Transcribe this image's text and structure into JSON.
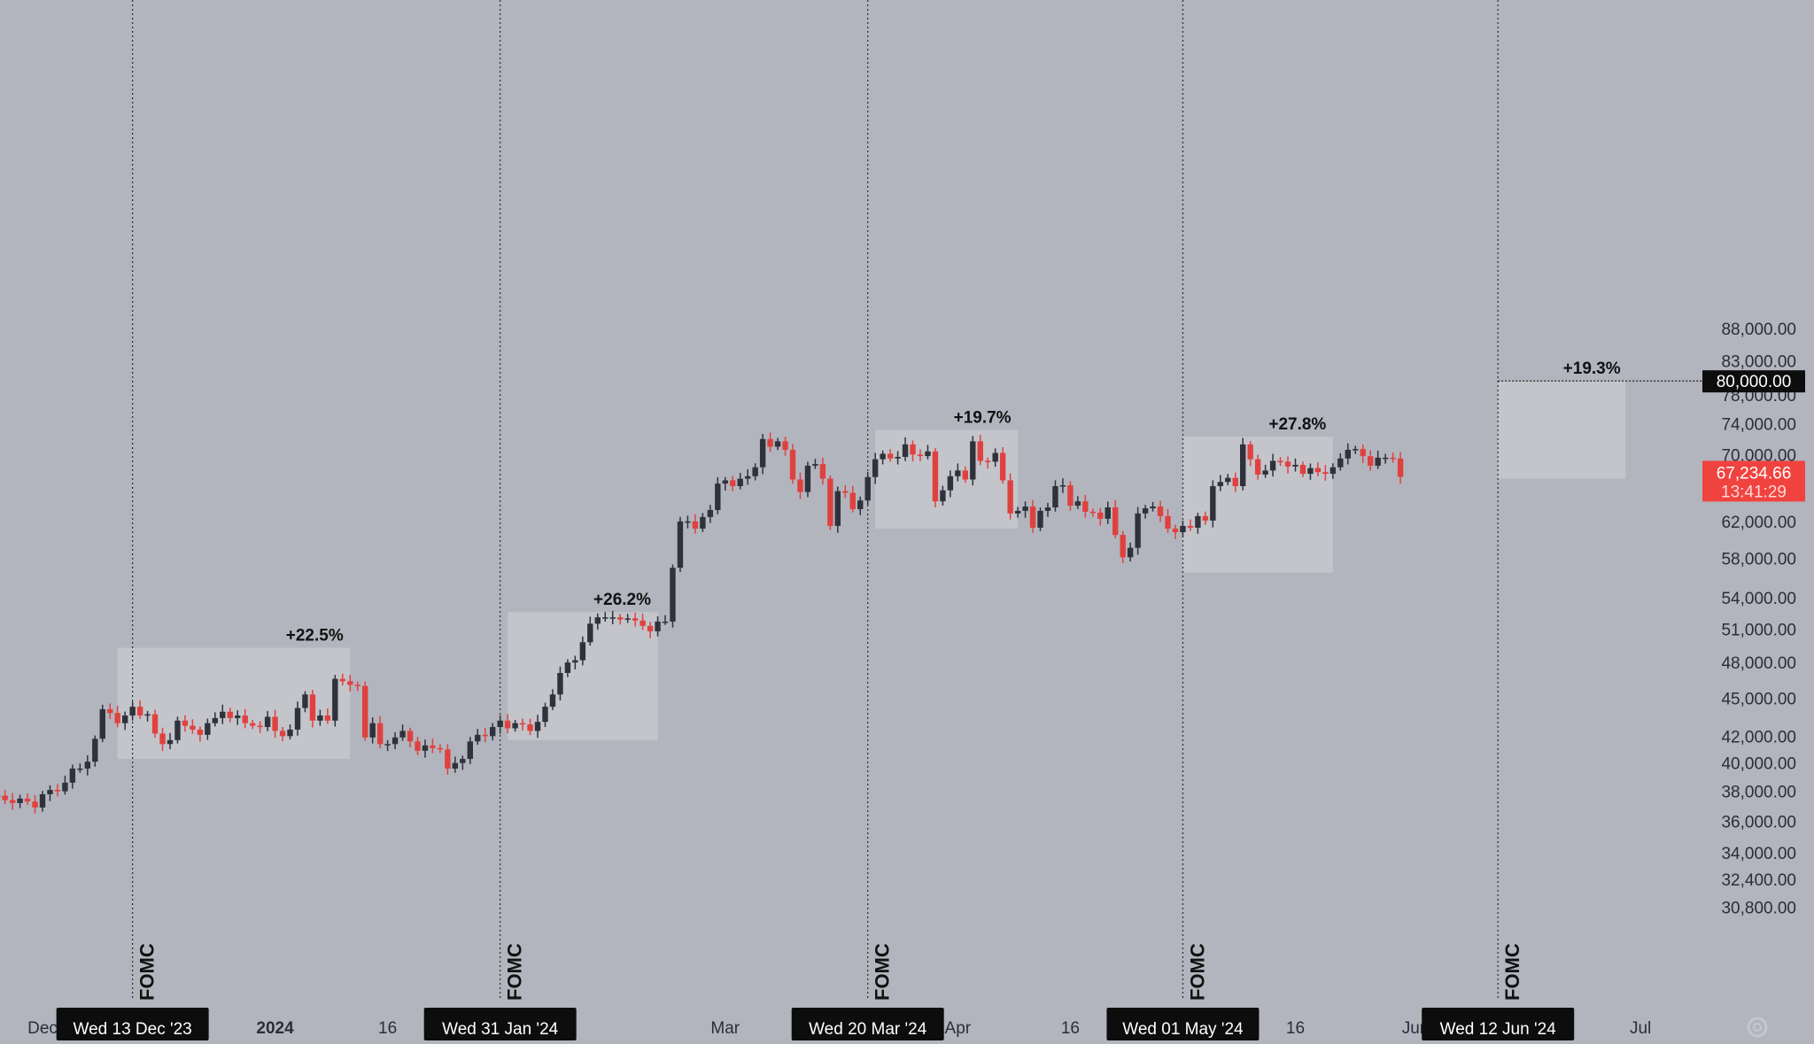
{
  "colors": {
    "background": "#b2b5be",
    "up_candle": "#2f323b",
    "down_candle": "#e0413f",
    "box_fill": "#c6c8ce",
    "vline": "#2a2a2a",
    "label_bg": "#0d0d0d",
    "price_tag": "#f0433f"
  },
  "price_axis": {
    "scale": "log",
    "ylim": [
      29000,
      90000
    ],
    "ticks": [
      "88,000.00",
      "83,000.00",
      "78,000.00",
      "74,000.00",
      "70,000.00",
      "62,000.00",
      "58,000.00",
      "54,000.00",
      "51,000.00",
      "48,000.00",
      "45,000.00",
      "42,000.00",
      "40,000.00",
      "38,000.00",
      "36,000.00",
      "34,000.00",
      "32,400.00",
      "30,800.00"
    ],
    "target_label": "80,000.00",
    "current_price": "67,234.66",
    "countdown": "13:41:29"
  },
  "time_axis": {
    "ticks": [
      {
        "label": "Dec",
        "day": 0
      },
      {
        "label": "2024",
        "day": 31
      },
      {
        "label": "16",
        "day": 46
      },
      {
        "label": "Mar",
        "day": 91
      },
      {
        "label": "Apr",
        "day": 122
      },
      {
        "label": "16",
        "day": 137
      },
      {
        "label": "16",
        "day": 167
      },
      {
        "label": "Jun",
        "day": 183
      },
      {
        "label": "Jul",
        "day": 213
      }
    ],
    "footer_icon": "gear-icon"
  },
  "fomc_events": [
    {
      "label": "FOMC",
      "date": "Wed 13 Dec '23",
      "day": 12
    },
    {
      "label": "FOMC",
      "date": "Wed 31 Jan '24",
      "day": 61
    },
    {
      "label": "FOMC",
      "date": "Wed 20 Mar '24",
      "day": 110
    },
    {
      "label": "FOMC",
      "date": "Wed 01 May '24",
      "day": 152
    },
    {
      "label": "FOMC",
      "date": "Wed 12 Jun '24",
      "day": 194
    }
  ],
  "rallies": [
    {
      "label": "+22.5%",
      "start_day": 10,
      "end_day": 41,
      "low": 40300,
      "high": 49300
    },
    {
      "label": "+26.2%",
      "start_day": 62,
      "end_day": 82,
      "low": 41700,
      "high": 52600
    },
    {
      "label": "+19.7%",
      "start_day": 111,
      "end_day": 130,
      "low": 61200,
      "high": 73200
    },
    {
      "label": "+27.8%",
      "start_day": 152,
      "end_day": 172,
      "low": 56500,
      "high": 72300
    },
    {
      "label": "+19.3%",
      "start_day": 194,
      "end_day": 211,
      "low": 67000,
      "high": 80000
    }
  ],
  "chart_data": {
    "type": "candlestick",
    "x_unit": "days since 1 Dec 2023",
    "series": [
      {
        "name": "",
        "day_start": -7,
        "closes": [
          37600,
          37700,
          37400,
          37200,
          37500,
          37300,
          36900,
          37800,
          38100,
          38000,
          38600,
          39600,
          39600,
          40100,
          41800,
          44100,
          43800,
          43000,
          43600,
          44300,
          43600,
          43700,
          42200,
          41400,
          41700,
          43200,
          42800,
          42500,
          42100,
          43000,
          43400,
          43900,
          43400,
          43600,
          43000,
          42800,
          42700,
          43500,
          42400,
          42000,
          42500,
          44200,
          45300,
          43200,
          43600,
          43200,
          46600,
          46400,
          46100,
          46000,
          41900,
          43000,
          41400,
          41400,
          41900,
          42400,
          41600,
          40900,
          41300,
          41100,
          41000,
          39600,
          40000,
          40300,
          41600,
          42100,
          42000,
          42700,
          43200,
          42600,
          43000,
          42900,
          42400,
          43100,
          44300,
          45300,
          47100,
          48000,
          48200,
          49800,
          51500,
          52100,
          52100,
          52100,
          51900,
          52000,
          51800,
          51300,
          50800,
          51700,
          51700,
          57000,
          62000,
          62000,
          61200,
          62500,
          63300,
          66400,
          66800,
          66100,
          67000,
          67300,
          68400,
          72000,
          71000,
          71700,
          70600,
          66900,
          65400,
          68600,
          68800,
          67000,
          61500,
          65500,
          65300,
          63400,
          64400,
          67200,
          69400,
          70100,
          69500,
          69700,
          71300,
          70000,
          69800,
          70400,
          64300,
          65600,
          67300,
          68000,
          66900,
          71700,
          69200,
          69100,
          70200,
          66800,
          62900,
          63200,
          63700,
          61300,
          63200,
          63600,
          66100,
          66200,
          63800,
          64300,
          63100,
          63000,
          62300,
          63600,
          60500,
          58100,
          59100,
          62900,
          63500,
          63700,
          62600,
          61200,
          60800,
          61500,
          61300,
          62600,
          62100,
          66100,
          66600,
          67100,
          66100,
          71300,
          69400,
          67500,
          68000,
          69200,
          69100,
          68500,
          68700,
          67600,
          68300,
          67800,
          67600,
          68400,
          69500,
          70600,
          70700,
          69800,
          68600,
          69600,
          69600,
          69500,
          67234
        ]
      }
    ],
    "fomc_dates": [
      "Wed 13 Dec '23",
      "Wed 31 Jan '24",
      "Wed 20 Mar '24",
      "Wed 01 May '24",
      "Wed 12 Jun '24"
    ],
    "post_fomc_moves": [
      "+22.5%",
      "+26.2%",
      "+19.7%",
      "+27.8%",
      "+19.3%"
    ],
    "target": 80000,
    "grid": false,
    "legend": "none"
  }
}
